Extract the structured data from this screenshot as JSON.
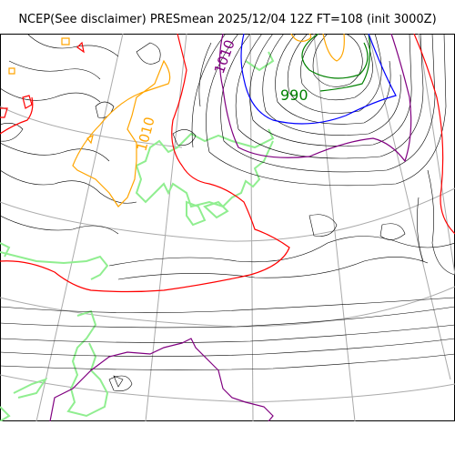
{
  "title": "NCEP(See disclaimer) PRESmean 2025/12/04 12Z FT=108 (init 3000Z)",
  "contour_labels": [
    "990",
    "1010",
    "1010"
  ],
  "colors": {
    "background": "#ffffff",
    "graticule": "#aaaaaa",
    "coastline": "#90ee90",
    "isobar_thin": "#000000",
    "isobar_990": "#008000",
    "isobar_1000": "#0000ff",
    "isobar_1010": "#ffa500",
    "isobar_1020": "#ff0000",
    "isobar_purple": "#800080"
  }
}
